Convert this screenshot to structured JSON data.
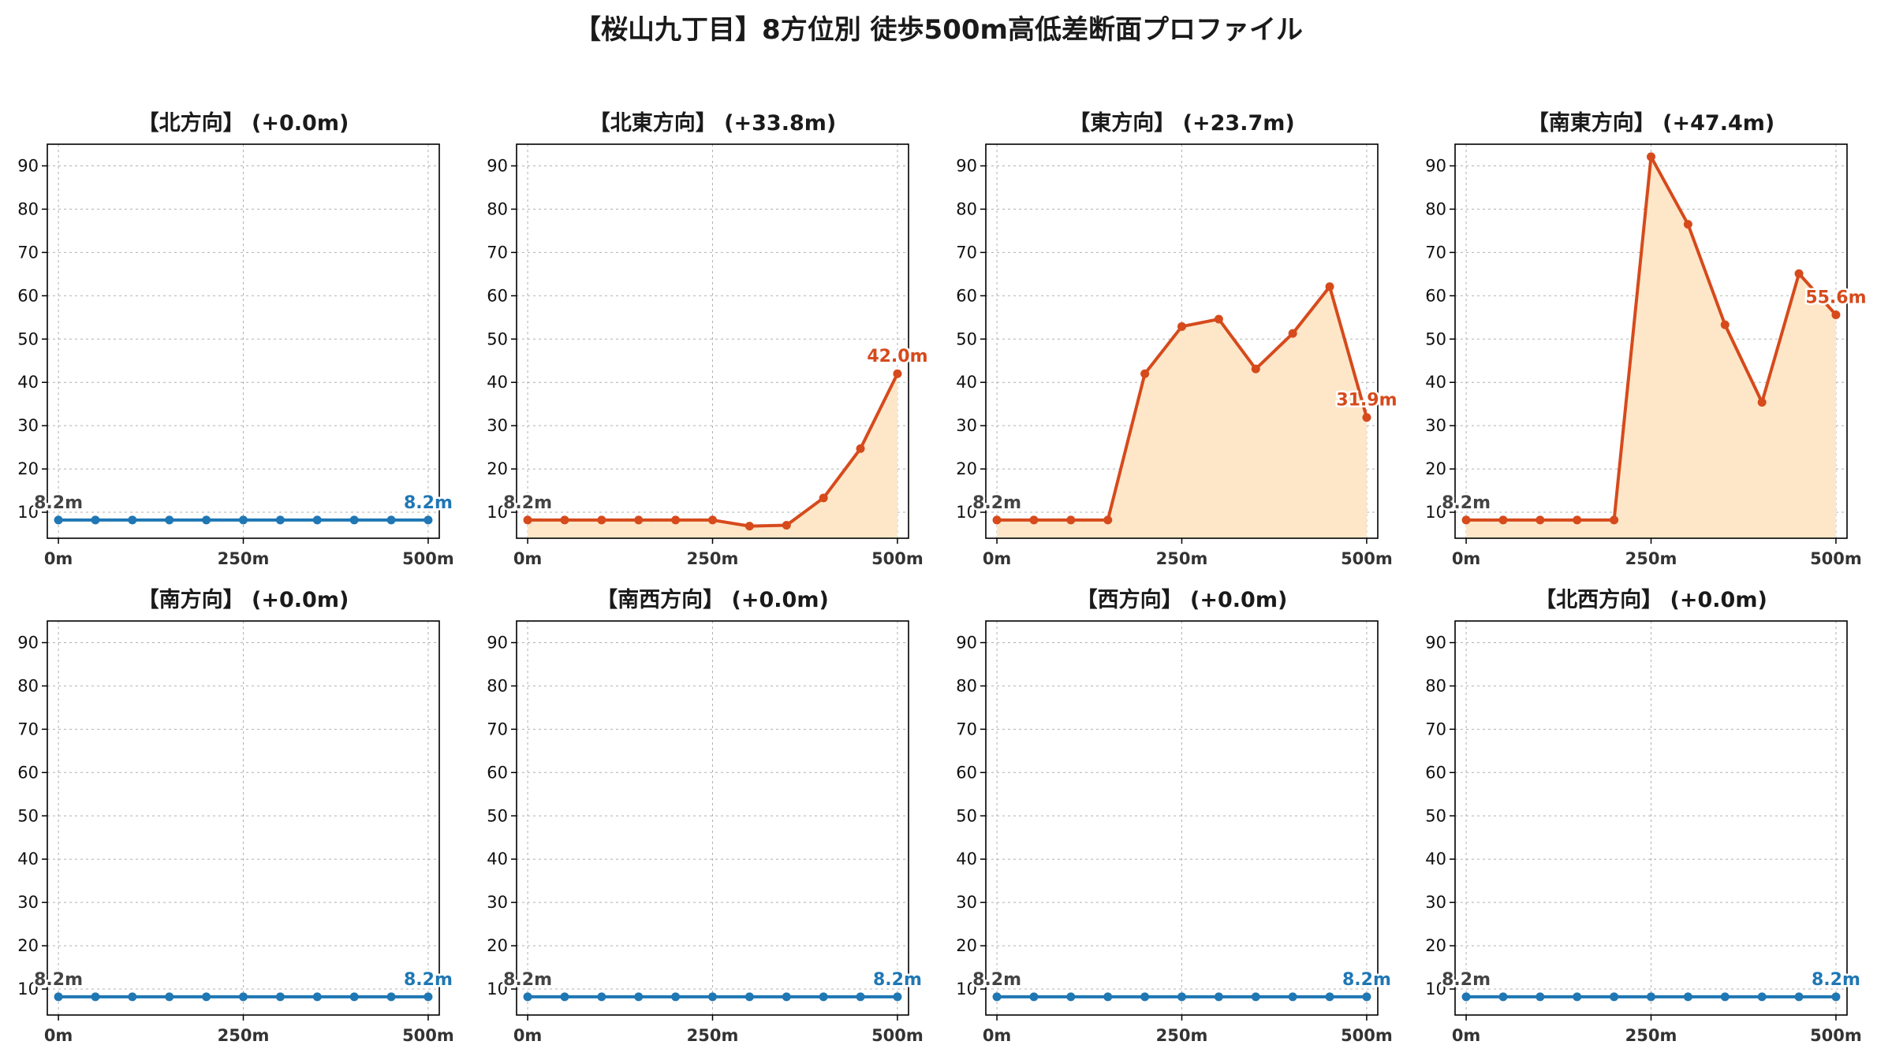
{
  "title": "【桜山九丁目】8方位別 徒歩500m高低差断面プロファイル",
  "colors": {
    "flat": "#1f77b4",
    "rise": "#d64a1c",
    "fill": "#fde7c8",
    "grid": "#b0b0b0",
    "start_label": "#444444"
  },
  "chart_data": [
    {
      "type": "line",
      "title": "【北方向】 (+0.0m)",
      "x": [
        0,
        50,
        100,
        150,
        200,
        250,
        300,
        350,
        400,
        450,
        500
      ],
      "values": [
        8.2,
        8.2,
        8.2,
        8.2,
        8.2,
        8.2,
        8.2,
        8.2,
        8.2,
        8.2,
        8.2
      ],
      "xticks": [
        "0m",
        "250m",
        "500m"
      ],
      "yticks": [
        10,
        20,
        30,
        40,
        50,
        60,
        70,
        80,
        90
      ],
      "ylim": [
        4,
        95
      ],
      "xlim": [
        -15,
        515
      ],
      "grid": true,
      "start_label": "8.2m",
      "end_label": "8.2m",
      "fill": false,
      "color": "flat"
    },
    {
      "type": "line",
      "title": "【北東方向】 (+33.8m)",
      "x": [
        0,
        50,
        100,
        150,
        200,
        250,
        300,
        350,
        400,
        450,
        500
      ],
      "values": [
        8.2,
        8.2,
        8.2,
        8.2,
        8.2,
        8.2,
        6.8,
        7.0,
        13.3,
        24.7,
        42.0
      ],
      "xticks": [
        "0m",
        "250m",
        "500m"
      ],
      "yticks": [
        10,
        20,
        30,
        40,
        50,
        60,
        70,
        80,
        90
      ],
      "ylim": [
        4,
        95
      ],
      "xlim": [
        -15,
        515
      ],
      "grid": true,
      "start_label": "8.2m",
      "end_label": "42.0m",
      "fill": true,
      "color": "rise"
    },
    {
      "type": "line",
      "title": "【東方向】 (+23.7m)",
      "x": [
        0,
        50,
        100,
        150,
        200,
        250,
        300,
        350,
        400,
        450,
        500
      ],
      "values": [
        8.2,
        8.2,
        8.2,
        8.2,
        42.0,
        52.9,
        54.6,
        43.1,
        51.3,
        62.1,
        31.9
      ],
      "xticks": [
        "0m",
        "250m",
        "500m"
      ],
      "yticks": [
        10,
        20,
        30,
        40,
        50,
        60,
        70,
        80,
        90
      ],
      "ylim": [
        4,
        95
      ],
      "xlim": [
        -15,
        515
      ],
      "grid": true,
      "start_label": "8.2m",
      "end_label": "31.9m",
      "fill": true,
      "color": "rise"
    },
    {
      "type": "line",
      "title": "【南東方向】 (+47.4m)",
      "x": [
        0,
        50,
        100,
        150,
        200,
        250,
        300,
        350,
        400,
        450,
        500
      ],
      "values": [
        8.2,
        8.2,
        8.2,
        8.2,
        8.2,
        92.1,
        76.5,
        53.3,
        35.4,
        65.1,
        55.6
      ],
      "xticks": [
        "0m",
        "250m",
        "500m"
      ],
      "yticks": [
        10,
        20,
        30,
        40,
        50,
        60,
        70,
        80,
        90
      ],
      "ylim": [
        4,
        95
      ],
      "xlim": [
        -15,
        515
      ],
      "grid": true,
      "start_label": "8.2m",
      "end_label": "55.6m",
      "fill": true,
      "color": "rise"
    },
    {
      "type": "line",
      "title": "【南方向】 (+0.0m)",
      "x": [
        0,
        50,
        100,
        150,
        200,
        250,
        300,
        350,
        400,
        450,
        500
      ],
      "values": [
        8.2,
        8.2,
        8.2,
        8.2,
        8.2,
        8.2,
        8.2,
        8.2,
        8.2,
        8.2,
        8.2
      ],
      "xticks": [
        "0m",
        "250m",
        "500m"
      ],
      "yticks": [
        10,
        20,
        30,
        40,
        50,
        60,
        70,
        80,
        90
      ],
      "ylim": [
        4,
        95
      ],
      "xlim": [
        -15,
        515
      ],
      "grid": true,
      "start_label": "8.2m",
      "end_label": "8.2m",
      "fill": false,
      "color": "flat"
    },
    {
      "type": "line",
      "title": "【南西方向】 (+0.0m)",
      "x": [
        0,
        50,
        100,
        150,
        200,
        250,
        300,
        350,
        400,
        450,
        500
      ],
      "values": [
        8.2,
        8.2,
        8.2,
        8.2,
        8.2,
        8.2,
        8.2,
        8.2,
        8.2,
        8.2,
        8.2
      ],
      "xticks": [
        "0m",
        "250m",
        "500m"
      ],
      "yticks": [
        10,
        20,
        30,
        40,
        50,
        60,
        70,
        80,
        90
      ],
      "ylim": [
        4,
        95
      ],
      "xlim": [
        -15,
        515
      ],
      "grid": true,
      "start_label": "8.2m",
      "end_label": "8.2m",
      "fill": false,
      "color": "flat"
    },
    {
      "type": "line",
      "title": "【西方向】 (+0.0m)",
      "x": [
        0,
        50,
        100,
        150,
        200,
        250,
        300,
        350,
        400,
        450,
        500
      ],
      "values": [
        8.2,
        8.2,
        8.2,
        8.2,
        8.2,
        8.2,
        8.2,
        8.2,
        8.2,
        8.2,
        8.2
      ],
      "xticks": [
        "0m",
        "250m",
        "500m"
      ],
      "yticks": [
        10,
        20,
        30,
        40,
        50,
        60,
        70,
        80,
        90
      ],
      "ylim": [
        4,
        95
      ],
      "xlim": [
        -15,
        515
      ],
      "grid": true,
      "start_label": "8.2m",
      "end_label": "8.2m",
      "fill": false,
      "color": "flat"
    },
    {
      "type": "line",
      "title": "【北西方向】 (+0.0m)",
      "x": [
        0,
        50,
        100,
        150,
        200,
        250,
        300,
        350,
        400,
        450,
        500
      ],
      "values": [
        8.2,
        8.2,
        8.2,
        8.2,
        8.2,
        8.2,
        8.2,
        8.2,
        8.2,
        8.2,
        8.2
      ],
      "xticks": [
        "0m",
        "250m",
        "500m"
      ],
      "yticks": [
        10,
        20,
        30,
        40,
        50,
        60,
        70,
        80,
        90
      ],
      "ylim": [
        4,
        95
      ],
      "xlim": [
        -15,
        515
      ],
      "grid": true,
      "start_label": "8.2m",
      "end_label": "8.2m",
      "fill": false,
      "color": "flat"
    }
  ]
}
